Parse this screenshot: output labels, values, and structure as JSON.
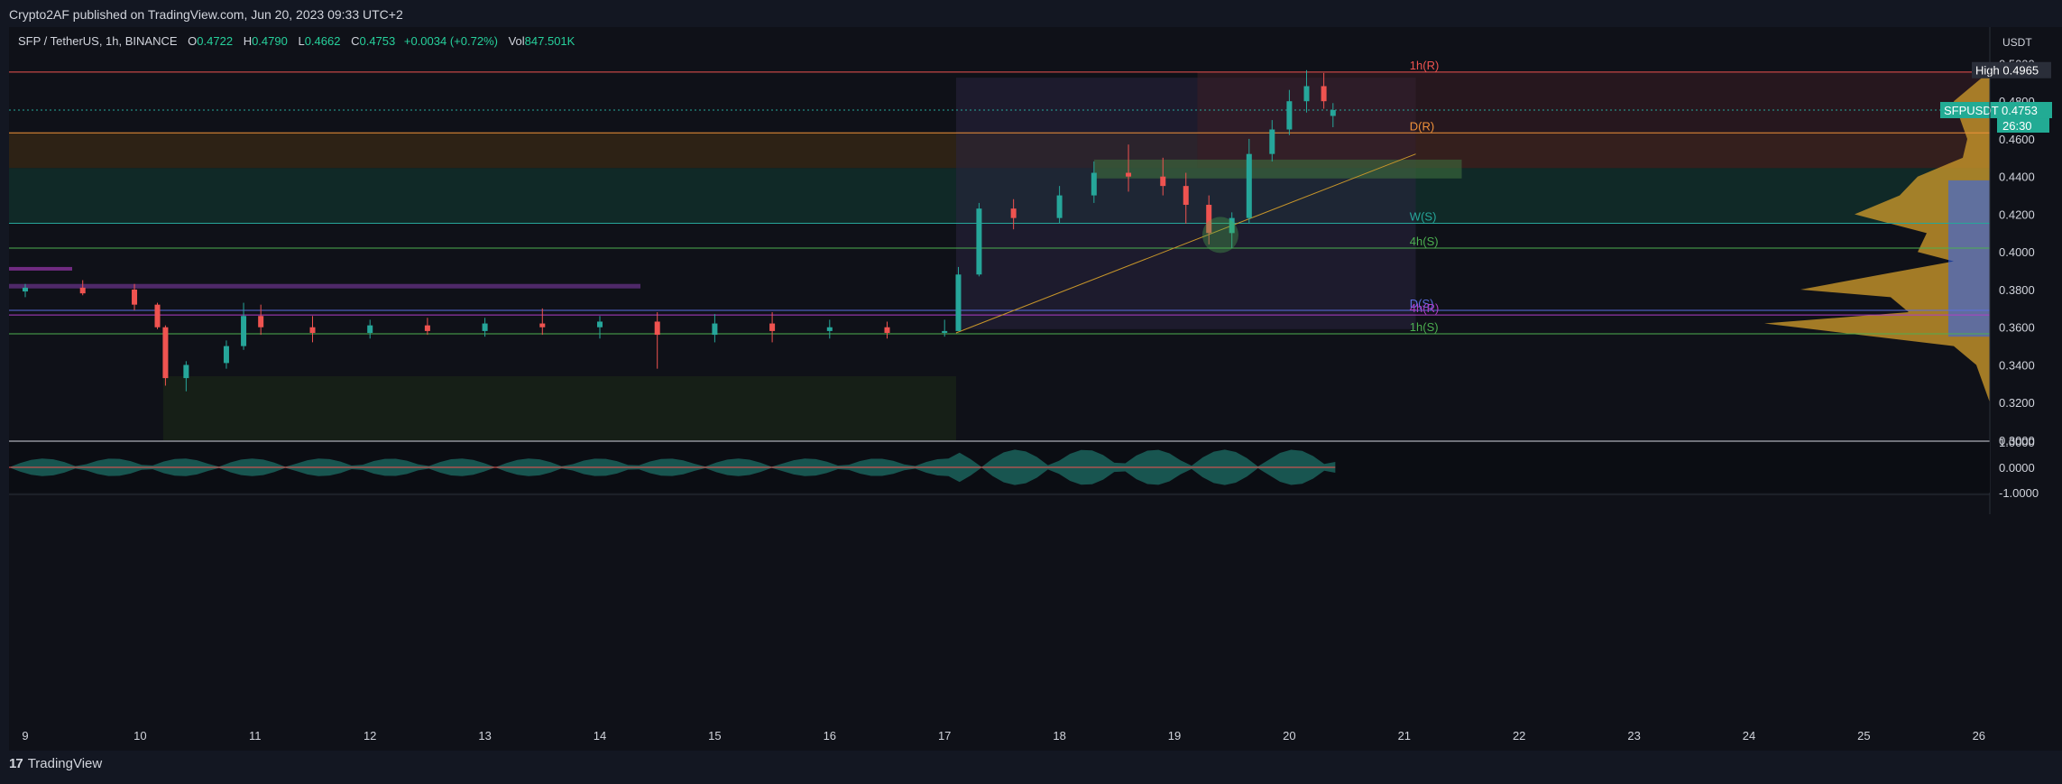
{
  "header": {
    "published": "Crypto2AF published on TradingView.com, Jun 20, 2023 09:33 UTC+2"
  },
  "symbol": {
    "name": "SFP / TetherUS, 1h, BINANCE",
    "open_label": "O",
    "open": "0.4722",
    "high_label": "H",
    "high": "0.4790",
    "low_label": "L",
    "low": "0.4662",
    "close_label": "C",
    "close": "0.4753",
    "change": "+0.0034 (+0.72%)",
    "vol_label": "Vol",
    "volume": "847.501K"
  },
  "axis": {
    "unit": "USDT",
    "high_label": "High",
    "high_value": "0.4965",
    "ticker_label": "SFPUSDT",
    "last_price": "0.4753",
    "countdown": "26:30"
  },
  "footer": {
    "brand": "TradingView"
  },
  "colors": {
    "up": "#26a69a",
    "down": "#ef5350",
    "background": "#0f1118",
    "accent_green": "#22ab94"
  },
  "chart_data": {
    "type": "candlestick",
    "y_ticks": [
      "0.5000",
      "0.4800",
      "0.4600",
      "0.4400",
      "0.4200",
      "0.4000",
      "0.3800",
      "0.3600",
      "0.3400",
      "0.3200",
      "0.3000"
    ],
    "ylim": [
      0.3,
      0.505
    ],
    "x_ticks": [
      "9",
      "10",
      "11",
      "12",
      "13",
      "14",
      "15",
      "16",
      "17",
      "18",
      "19",
      "20",
      "21",
      "22",
      "23",
      "24",
      "25",
      "26"
    ],
    "levels": [
      {
        "label": "1h(R)",
        "price": 0.4955,
        "color": "#ef5350"
      },
      {
        "label": "D(R)",
        "price": 0.4632,
        "color": "#f0913a"
      },
      {
        "label": "W(S)",
        "price": 0.4152,
        "color": "#26a69a"
      },
      {
        "label": "4h(S)",
        "price": 0.402,
        "color": "#4caf50"
      },
      {
        "label": "D(S)",
        "price": 0.369,
        "color": "#5b6ee1"
      },
      {
        "label": "4h(R)",
        "price": 0.3665,
        "color": "#b03ec8"
      },
      {
        "label": "1h(S)",
        "price": 0.3565,
        "color": "#4caf50"
      }
    ],
    "oscillator": {
      "ticks": [
        "1.0000",
        "0.0000",
        "-1.0000"
      ],
      "ylim": [
        -1,
        1
      ]
    },
    "series": [
      {
        "x": 0,
        "o": 0.379,
        "h": 0.383,
        "l": 0.376,
        "c": 0.381
      },
      {
        "x": 0.5,
        "o": 0.381,
        "h": 0.385,
        "l": 0.377,
        "c": 0.378
      },
      {
        "x": 0.95,
        "o": 0.38,
        "h": 0.383,
        "l": 0.369,
        "c": 0.372
      },
      {
        "x": 1.15,
        "o": 0.372,
        "h": 0.373,
        "l": 0.359,
        "c": 0.36
      },
      {
        "x": 1.22,
        "o": 0.36,
        "h": 0.361,
        "l": 0.329,
        "c": 0.333
      },
      {
        "x": 1.4,
        "o": 0.333,
        "h": 0.342,
        "l": 0.326,
        "c": 0.34
      },
      {
        "x": 1.75,
        "o": 0.341,
        "h": 0.353,
        "l": 0.338,
        "c": 0.35
      },
      {
        "x": 1.9,
        "o": 0.35,
        "h": 0.373,
        "l": 0.348,
        "c": 0.366
      },
      {
        "x": 2.05,
        "o": 0.366,
        "h": 0.372,
        "l": 0.356,
        "c": 0.36
      },
      {
        "x": 2.5,
        "o": 0.36,
        "h": 0.366,
        "l": 0.352,
        "c": 0.357
      },
      {
        "x": 3.0,
        "o": 0.357,
        "h": 0.364,
        "l": 0.354,
        "c": 0.361
      },
      {
        "x": 3.5,
        "o": 0.361,
        "h": 0.365,
        "l": 0.356,
        "c": 0.358
      },
      {
        "x": 4.0,
        "o": 0.358,
        "h": 0.365,
        "l": 0.355,
        "c": 0.362
      },
      {
        "x": 4.5,
        "o": 0.362,
        "h": 0.37,
        "l": 0.356,
        "c": 0.36
      },
      {
        "x": 5.0,
        "o": 0.36,
        "h": 0.366,
        "l": 0.354,
        "c": 0.363
      },
      {
        "x": 5.5,
        "o": 0.363,
        "h": 0.368,
        "l": 0.338,
        "c": 0.356
      },
      {
        "x": 6.0,
        "o": 0.356,
        "h": 0.367,
        "l": 0.352,
        "c": 0.362
      },
      {
        "x": 6.5,
        "o": 0.362,
        "h": 0.368,
        "l": 0.352,
        "c": 0.358
      },
      {
        "x": 7.0,
        "o": 0.358,
        "h": 0.364,
        "l": 0.354,
        "c": 0.36
      },
      {
        "x": 7.5,
        "o": 0.36,
        "h": 0.363,
        "l": 0.354,
        "c": 0.357
      },
      {
        "x": 8.0,
        "o": 0.357,
        "h": 0.364,
        "l": 0.355,
        "c": 0.358
      },
      {
        "x": 8.12,
        "o": 0.358,
        "h": 0.392,
        "l": 0.358,
        "c": 0.388
      },
      {
        "x": 8.3,
        "o": 0.388,
        "h": 0.426,
        "l": 0.387,
        "c": 0.423
      },
      {
        "x": 8.6,
        "o": 0.423,
        "h": 0.428,
        "l": 0.412,
        "c": 0.418
      },
      {
        "x": 9.0,
        "o": 0.418,
        "h": 0.435,
        "l": 0.415,
        "c": 0.43
      },
      {
        "x": 9.3,
        "o": 0.43,
        "h": 0.448,
        "l": 0.426,
        "c": 0.442
      },
      {
        "x": 9.6,
        "o": 0.442,
        "h": 0.457,
        "l": 0.432,
        "c": 0.44
      },
      {
        "x": 9.9,
        "o": 0.44,
        "h": 0.45,
        "l": 0.43,
        "c": 0.435
      },
      {
        "x": 10.1,
        "o": 0.435,
        "h": 0.442,
        "l": 0.415,
        "c": 0.425
      },
      {
        "x": 10.3,
        "o": 0.425,
        "h": 0.43,
        "l": 0.404,
        "c": 0.41
      },
      {
        "x": 10.5,
        "o": 0.41,
        "h": 0.421,
        "l": 0.402,
        "c": 0.418
      },
      {
        "x": 10.65,
        "o": 0.418,
        "h": 0.46,
        "l": 0.415,
        "c": 0.452
      },
      {
        "x": 10.85,
        "o": 0.452,
        "h": 0.47,
        "l": 0.448,
        "c": 0.465
      },
      {
        "x": 11.0,
        "o": 0.465,
        "h": 0.486,
        "l": 0.462,
        "c": 0.48
      },
      {
        "x": 11.15,
        "o": 0.48,
        "h": 0.4965,
        "l": 0.474,
        "c": 0.488
      },
      {
        "x": 11.3,
        "o": 0.488,
        "h": 0.495,
        "l": 0.476,
        "c": 0.48
      },
      {
        "x": 11.38,
        "o": 0.4722,
        "h": 0.479,
        "l": 0.4662,
        "c": 0.4753
      }
    ]
  }
}
